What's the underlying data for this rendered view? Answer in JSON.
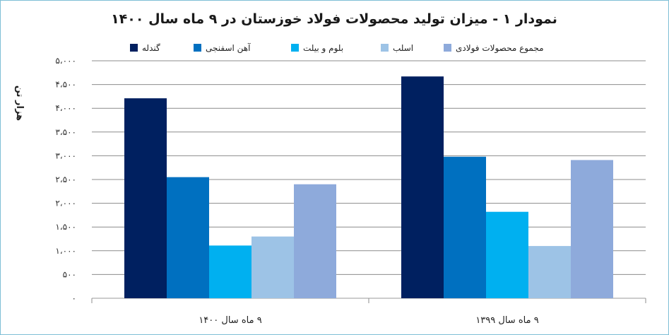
{
  "chart_data": {
    "type": "bar",
    "title": "نمودار ۱ - میزان تولید محصولات فولاد خوزستان در ۹ ماه سال ۱۴۰۰",
    "ylabel": "هزار تن",
    "xlabel": "",
    "ylim": [
      0,
      5000
    ],
    "yticks": [
      0,
      500,
      1000,
      1500,
      2000,
      2500,
      3000,
      3500,
      4000,
      4500,
      5000
    ],
    "ytick_labels": [
      "۰",
      "۵۰۰",
      "۱،۰۰۰",
      "۱،۵۰۰",
      "۲،۰۰۰",
      "۲،۵۰۰",
      "۳،۰۰۰",
      "۳،۵۰۰",
      "۴،۰۰۰",
      "۴،۵۰۰",
      "۵،۰۰۰"
    ],
    "categories": [
      "۹ ماه سال ۱۴۰۰",
      "۹ ماه سال ۱۳۹۹"
    ],
    "grid": true,
    "legend_position": "top",
    "series": [
      {
        "name": "گندله",
        "color": "#002060",
        "values": [
          4210,
          4670
        ]
      },
      {
        "name": "آهن اسفنجی",
        "color": "#0070c0",
        "values": [
          2550,
          2980
        ]
      },
      {
        "name": "بلوم و بیلت",
        "color": "#00b0f0",
        "values": [
          1110,
          1820
        ]
      },
      {
        "name": "اسلب",
        "color": "#9dc3e6",
        "values": [
          1300,
          1100
        ]
      },
      {
        "name": "مجموع محصولات فولادی",
        "color": "#8eaadb",
        "values": [
          2400,
          2910
        ]
      }
    ]
  }
}
